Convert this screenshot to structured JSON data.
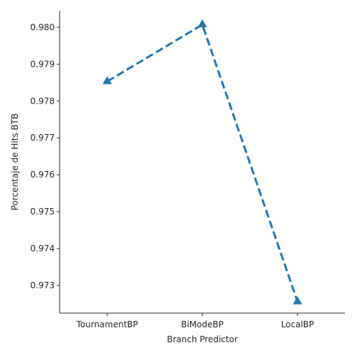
{
  "chart_data": {
    "type": "line",
    "title": "",
    "xlabel": "Branch Predictor",
    "ylabel": "Porcentaje de Hits BTB",
    "categories": [
      "TournamentBP",
      "BiModeBP",
      "LocalBP"
    ],
    "series": [
      {
        "values": [
          0.97853,
          0.98007,
          0.97256
        ],
        "color": "#1f77b4",
        "line_style": "dashed",
        "marker": "triangle-up"
      }
    ],
    "ylim": [
      0.97225,
      0.98045
    ],
    "yticks": [
      0.973,
      0.974,
      0.975,
      0.976,
      0.977,
      0.978,
      0.979,
      0.98
    ],
    "ytick_labels": [
      "0.973",
      "0.974",
      "0.975",
      "0.976",
      "0.977",
      "0.978",
      "0.979",
      "0.980"
    ],
    "grid": false,
    "legend": "none"
  }
}
